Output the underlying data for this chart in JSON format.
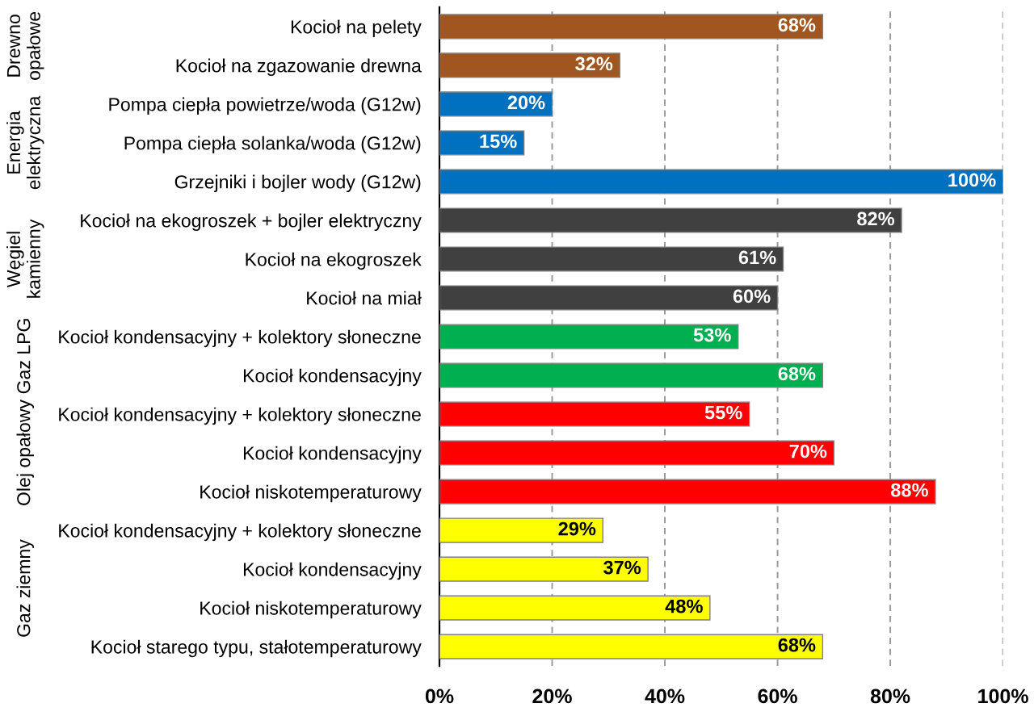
{
  "chart_data": {
    "type": "bar",
    "orientation": "horizontal",
    "categories": [
      "Kocioł na pelety",
      "Kocioł na zgazowanie drewna",
      "Pompa ciepła powietrze/woda (G12w)",
      "Pompa ciepła solanka/woda (G12w)",
      "Grzejniki i bojler wody (G12w)",
      "Kocioł na ekogroszek + bojler elektryczny",
      "Kocioł na ekogroszek",
      "Kocioł na miał",
      "Kocioł kondensacyjny + kolektory słoneczne",
      "Kocioł kondensacyjny",
      "Kocioł kondensacyjny + kolektory słoneczne",
      "Kocioł kondensacyjny",
      "Kocioł niskotemperaturowy",
      "Kocioł kondensacyjny + kolektory słoneczne",
      "Kocioł kondensacyjny",
      "Kocioł niskotemperaturowy",
      "Kocioł starego typu, stałotemperaturowy"
    ],
    "values": [
      68,
      32,
      20,
      15,
      100,
      82,
      61,
      60,
      53,
      68,
      55,
      70,
      88,
      29,
      37,
      48,
      68
    ],
    "colors": [
      "#a0561e",
      "#a0561e",
      "#0070c0",
      "#0070c0",
      "#0070c0",
      "#404040",
      "#404040",
      "#404040",
      "#00b050",
      "#00b050",
      "#ff0000",
      "#ff0000",
      "#ff0000",
      "#ffff00",
      "#ffff00",
      "#ffff00",
      "#ffff00"
    ],
    "value_labels": [
      "68%",
      "32%",
      "20%",
      "15%",
      "100%",
      "82%",
      "61%",
      "60%",
      "53%",
      "68%",
      "55%",
      "70%",
      "88%",
      "29%",
      "37%",
      "48%",
      "68%"
    ],
    "xlim": [
      0,
      100
    ],
    "xticks": [
      {
        "value": 0,
        "label": "0%"
      },
      {
        "value": 20,
        "label": "20%"
      },
      {
        "value": 40,
        "label": "40%"
      },
      {
        "value": 60,
        "label": "60%"
      },
      {
        "value": 80,
        "label": "80%"
      },
      {
        "value": 100,
        "label": "100%"
      }
    ],
    "grid": "x",
    "annotations": [
      "Drewno opałowe",
      "Energia elektryczna",
      "Węgiel kamienny",
      "Gaz LPG",
      "Olej opałowy",
      "Gaz ziemny"
    ]
  }
}
